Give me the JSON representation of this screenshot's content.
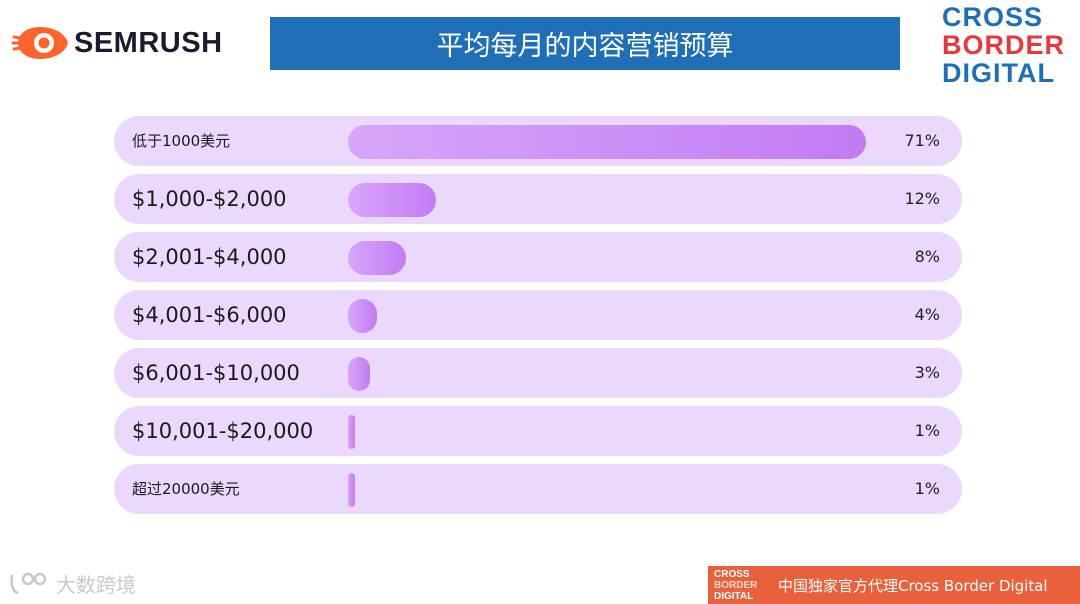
{
  "header": {
    "brand_left": "SEMRUSH",
    "title": "平均每月的内容营销预算",
    "brand_right_lines": [
      "CROSS",
      "BORDER",
      "DIGITAL"
    ]
  },
  "chart_data": {
    "type": "bar",
    "orientation": "horizontal",
    "title": "平均每月的内容营销预算",
    "categories": [
      "低于1000美元",
      "$1,000-$2,000",
      "$2,001-$4,000",
      "$4,001-$6,000",
      "$6,001-$10,000",
      "$10,001-$20,000",
      "超过20000美元"
    ],
    "values": [
      71,
      12,
      8,
      4,
      3,
      1,
      1
    ],
    "value_labels": [
      "71%",
      "12%",
      "8%",
      "4%",
      "3%",
      "1%",
      "1%"
    ],
    "unit": "%",
    "xlim": [
      0,
      71
    ],
    "grid": false,
    "legend": "none"
  },
  "footer": {
    "watermark": "大数跨境",
    "banner_logo_lines": [
      "CROSS",
      "BORDER",
      "DIGITAL"
    ],
    "banner_text": "中国独家官方代理Cross Border Digital"
  },
  "colors": {
    "title_bar": "#1f6fb6",
    "track": "#ead9fc",
    "bar_start": "#d7a6fb",
    "bar_end": "#c27bf3",
    "semrush_orange": "#ff642d",
    "banner": "#e8613c",
    "cbd_blue": "#1f6fb6",
    "cbd_red": "#e5393b"
  },
  "icons": [
    "semrush-flame-icon",
    "cbd-logo",
    "watermark-icon"
  ]
}
